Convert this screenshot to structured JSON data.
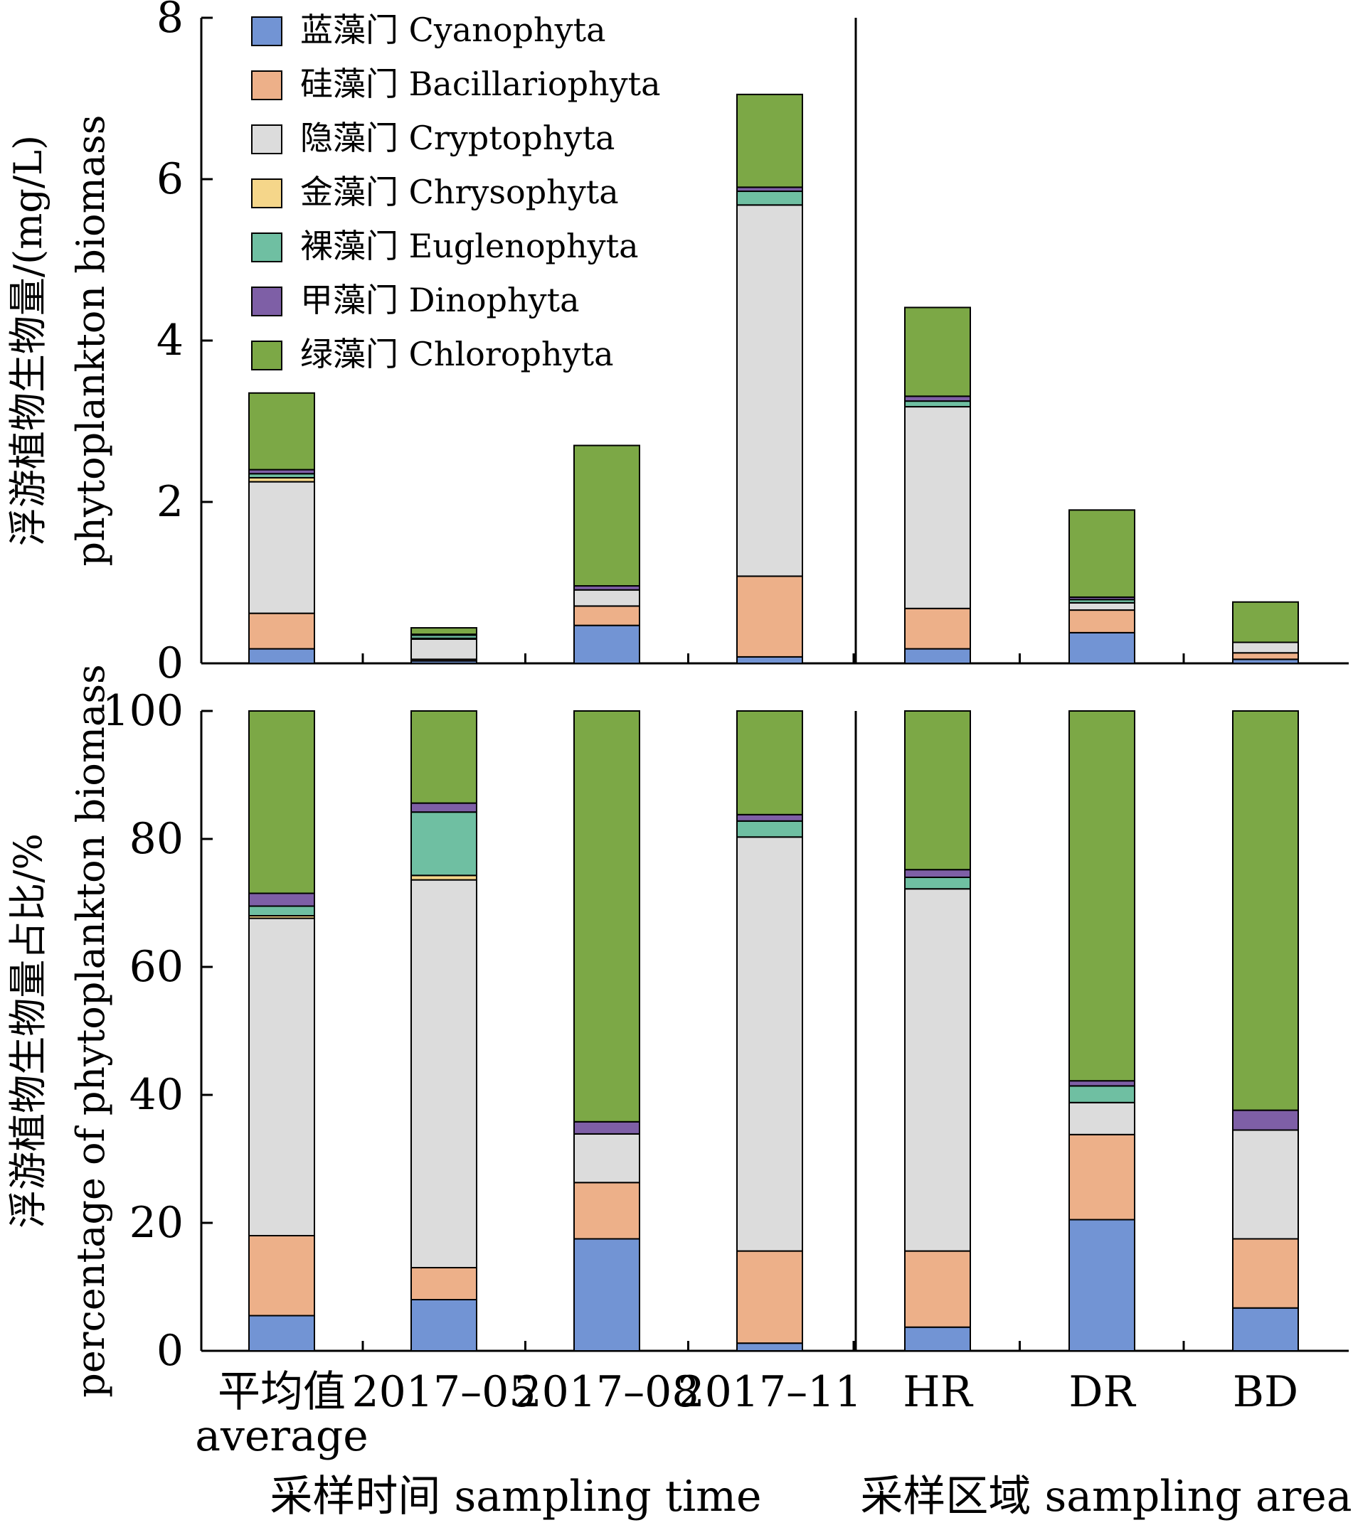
{
  "chart_data": [
    {
      "type": "bar",
      "stacked": true,
      "ylabel_lines": [
        "浮游植物生物量/(mg/L)",
        "phytoplankton biomass"
      ],
      "ylim": [
        0,
        8
      ],
      "yticks": [
        "0",
        "2",
        "4",
        "6",
        "8"
      ],
      "categories": [
        "平均值 average",
        "2017–05",
        "2017–08",
        "2017–11",
        "HR",
        "DR",
        "BD"
      ],
      "series": [
        {
          "name": "蓝藻门 Cyanophyta",
          "color": "#7294d4",
          "values": [
            0.18,
            0.03,
            0.47,
            0.08,
            0.18,
            0.38,
            0.05
          ]
        },
        {
          "name": "硅藻门 Bacillariophyta",
          "color": "#edb089",
          "values": [
            0.44,
            0.02,
            0.24,
            1.0,
            0.5,
            0.28,
            0.08
          ]
        },
        {
          "name": "隐藻门 Cryptophyta",
          "color": "#dcdcdc",
          "values": [
            1.63,
            0.25,
            0.2,
            4.6,
            2.5,
            0.09,
            0.13
          ]
        },
        {
          "name": "金藻门 Chrysophyta",
          "color": "#f5d68a",
          "values": [
            0.05,
            0.01,
            0.0,
            0.0,
            0.0,
            0.0,
            0.0
          ]
        },
        {
          "name": "裸藻门 Euglenophyta",
          "color": "#6fbfa2",
          "values": [
            0.05,
            0.04,
            0.0,
            0.17,
            0.07,
            0.04,
            0.0
          ]
        },
        {
          "name": "甲藻门 Dinophyta",
          "color": "#7e5fa6",
          "values": [
            0.05,
            0.01,
            0.05,
            0.05,
            0.06,
            0.03,
            0.0
          ]
        },
        {
          "name": "绿藻门 Chlorophyta",
          "color": "#7ca846",
          "values": [
            0.95,
            0.08,
            1.74,
            1.15,
            1.1,
            1.08,
            0.5
          ]
        }
      ]
    },
    {
      "type": "bar",
      "stacked": true,
      "ylabel_lines": [
        "浮游植物生物量占比/%",
        "percentage of phytoplankton biomass"
      ],
      "ylim": [
        0,
        100
      ],
      "yticks": [
        "0",
        "20",
        "40",
        "60",
        "80",
        "100"
      ],
      "categories": [
        "平均值 average",
        "2017–05",
        "2017–08",
        "2017–11",
        "HR",
        "DR",
        "BD"
      ],
      "series": [
        {
          "name": "蓝藻门 Cyanophyta",
          "values": [
            5.5,
            8.0,
            17.5,
            1.2,
            3.7,
            20.5,
            6.7
          ]
        },
        {
          "name": "硅藻门 Bacillariophyta",
          "values": [
            12.5,
            5.0,
            8.8,
            14.4,
            11.9,
            13.3,
            10.8
          ]
        },
        {
          "name": "隐藻门 Cryptophyta",
          "values": [
            49.6,
            60.6,
            7.6,
            64.7,
            56.6,
            5.0,
            17.0
          ]
        },
        {
          "name": "金藻门 Chrysophyta",
          "values": [
            0.4,
            0.7,
            0.0,
            0.0,
            0.0,
            0.0,
            0.0
          ]
        },
        {
          "name": "裸藻门 Euglenophyta",
          "values": [
            1.5,
            9.9,
            0.0,
            2.5,
            1.8,
            2.6,
            0.0
          ]
        },
        {
          "name": "甲藻门 Dinophyta",
          "values": [
            2.0,
            1.4,
            1.9,
            1.0,
            1.2,
            0.8,
            3.1
          ]
        },
        {
          "name": "绿藻门 Chlorophyta",
          "values": [
            28.5,
            14.4,
            64.2,
            16.2,
            24.8,
            57.8,
            62.4
          ]
        }
      ]
    }
  ],
  "x_category_labels": [
    [
      "平均值",
      "average"
    ],
    [
      "2017–05"
    ],
    [
      "2017–08"
    ],
    [
      "2017–11"
    ],
    [
      "HR"
    ],
    [
      "DR"
    ],
    [
      "BD"
    ]
  ],
  "group_labels": [
    "采样时间 sampling time",
    "采样区域 sampling area"
  ]
}
